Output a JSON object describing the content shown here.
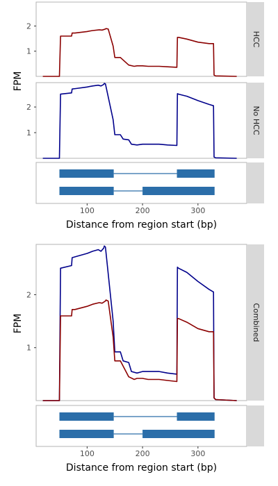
{
  "chart_data": [
    {
      "type": "line",
      "facet_strips": [
        "HCC",
        "No HCC"
      ],
      "xlabel": "Distance from region start (bp)",
      "ylabel": "FPM",
      "xlim": [
        8,
        388
      ],
      "x_ticks": [
        "100",
        "200",
        "300"
      ],
      "y_ticks": [
        "1",
        "2"
      ],
      "grid": false,
      "series": [
        {
          "strip": "HCC",
          "color": "#8b0000",
          "ylim": [
            0,
            2.95
          ],
          "x": [
            20,
            50,
            52,
            72,
            73,
            78,
            100,
            110,
            122,
            127,
            133,
            134,
            138,
            147,
            150,
            153,
            160,
            175,
            185,
            190,
            200,
            210,
            230,
            245,
            262,
            263,
            265,
            280,
            300,
            320,
            328,
            329,
            332,
            370
          ],
          "y": [
            0,
            0,
            1.6,
            1.6,
            1.72,
            1.72,
            1.78,
            1.82,
            1.85,
            1.84,
            1.88,
            1.9,
            1.88,
            1.2,
            0.75,
            0.75,
            0.75,
            0.45,
            0.4,
            0.42,
            0.42,
            0.4,
            0.4,
            0.38,
            0.36,
            1.55,
            1.55,
            1.48,
            1.36,
            1.3,
            1.3,
            0.05,
            0.02,
            0
          ]
        },
        {
          "strip": "No HCC",
          "color": "#00008b",
          "ylim": [
            0,
            2.95
          ],
          "x": [
            20,
            50,
            52,
            72,
            73,
            80,
            100,
            110,
            120,
            125,
            130,
            131,
            133,
            147,
            150,
            153,
            160,
            165,
            175,
            180,
            190,
            200,
            210,
            230,
            245,
            262,
            263,
            265,
            280,
            300,
            320,
            328,
            329,
            332,
            370
          ],
          "y": [
            0,
            0,
            2.5,
            2.55,
            2.7,
            2.72,
            2.78,
            2.82,
            2.85,
            2.82,
            2.88,
            2.92,
            2.9,
            1.5,
            0.92,
            0.92,
            0.92,
            0.75,
            0.72,
            0.55,
            0.52,
            0.55,
            0.55,
            0.55,
            0.52,
            0.5,
            2.52,
            2.5,
            2.42,
            2.25,
            2.1,
            2.05,
            0.05,
            0.02,
            0
          ]
        }
      ],
      "transcripts": [
        {
          "exons": [
            [
              50,
              148
            ],
            [
              262,
              330
            ]
          ]
        },
        {
          "exons": [
            [
              50,
              148
            ],
            [
              200,
              330
            ]
          ]
        }
      ]
    },
    {
      "type": "line",
      "facet_strips": [
        "Combined"
      ],
      "xlabel": "Distance from region start (bp)",
      "ylabel": "FPM",
      "xlim": [
        8,
        388
      ],
      "x_ticks": [
        "100",
        "200",
        "300"
      ],
      "y_ticks": [
        "1",
        "2"
      ],
      "grid": false,
      "ylim": [
        0,
        2.95
      ],
      "series": [
        {
          "color": "#00008b",
          "x": [
            20,
            50,
            52,
            72,
            73,
            80,
            100,
            110,
            120,
            125,
            130,
            131,
            133,
            147,
            150,
            153,
            160,
            165,
            175,
            180,
            190,
            200,
            210,
            230,
            245,
            262,
            263,
            265,
            280,
            300,
            320,
            328,
            329,
            332,
            370
          ],
          "y": [
            0,
            0,
            2.5,
            2.55,
            2.7,
            2.72,
            2.78,
            2.82,
            2.85,
            2.82,
            2.88,
            2.92,
            2.9,
            1.5,
            0.92,
            0.92,
            0.92,
            0.75,
            0.72,
            0.55,
            0.52,
            0.55,
            0.55,
            0.55,
            0.52,
            0.5,
            2.52,
            2.5,
            2.42,
            2.25,
            2.1,
            2.05,
            0.05,
            0.02,
            0
          ]
        },
        {
          "color": "#8b0000",
          "x": [
            20,
            50,
            52,
            72,
            73,
            78,
            100,
            110,
            122,
            127,
            133,
            134,
            138,
            147,
            150,
            153,
            160,
            175,
            185,
            190,
            200,
            210,
            230,
            245,
            262,
            263,
            265,
            280,
            300,
            320,
            328,
            329,
            332,
            370
          ],
          "y": [
            0,
            0,
            1.6,
            1.6,
            1.72,
            1.72,
            1.78,
            1.82,
            1.85,
            1.84,
            1.88,
            1.9,
            1.88,
            1.2,
            0.75,
            0.75,
            0.75,
            0.45,
            0.4,
            0.42,
            0.42,
            0.4,
            0.4,
            0.38,
            0.36,
            1.55,
            1.55,
            1.48,
            1.36,
            1.3,
            1.3,
            0.05,
            0.02,
            0
          ]
        }
      ],
      "transcripts": [
        {
          "exons": [
            [
              50,
              148
            ],
            [
              262,
              330
            ]
          ]
        },
        {
          "exons": [
            [
              50,
              148
            ],
            [
              200,
              330
            ]
          ]
        }
      ]
    }
  ],
  "colors": {
    "hcc": "#8b0000",
    "no_hcc": "#00008b",
    "exon": "#2b6ea9",
    "strip_bg": "#d9d9d9",
    "panel_border": "#b3b3b3",
    "tick_text": "#4d4d4d"
  }
}
